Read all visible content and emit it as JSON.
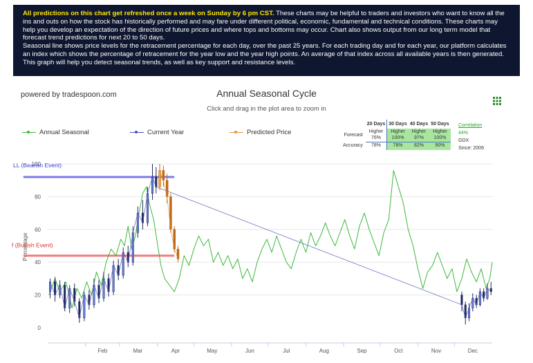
{
  "info": {
    "highlight": "All predictions on this chart get refreshed once a week on Sunday by 6 pm CST.",
    "text1": " These charts may be helpful to traders and investors who want to know all the ins and outs on how the stock has historically performed and may fare under different political, economic, fundamental and technical conditions. These charts may help you develop an expectation of the direction of future prices and where tops and bottoms may occur. Chart also shows output from our long term model that forecast trend predictions for next 20 to 50 days.",
    "text2": "Seasonal line shows price levels for the retracement percentage for each day, over the past 25 years. For each trading day and for each year, our platform calculates an index which shows the percentage of retracement for the year low and the year high points. An average of that index across all available years is then generated. This graph will help you detect seasonal trends, as well as key support and resistance levels."
  },
  "powered_by": "powered by tradespoon.com",
  "forecast": {
    "headers": [
      "20 Days",
      "30 Days",
      "40 Days",
      "50 Days"
    ],
    "forecast_label": "Forecast",
    "forecast_values": [
      [
        "Higher",
        "76%"
      ],
      [
        "Higher",
        "100%"
      ],
      [
        "Higher",
        "97%"
      ],
      [
        "Higher",
        "100%"
      ]
    ],
    "accuracy_label": "Accuracy",
    "accuracy_values": [
      "78%",
      "78%",
      "82%",
      "90%"
    ],
    "correlation_label": "Correlation",
    "correlation_value": "44%",
    "ticker": "GDX",
    "since": "Since: 2006"
  },
  "colors": {
    "seasonal": "#3cb83c",
    "current": "#4c52b8",
    "predicted": "#e8913a",
    "bearish_line": "#7b7be8",
    "bullish_line": "#f07a7a",
    "up_candle": "#6c7fe0",
    "down_candle": "#1f2a5c",
    "pred_up": "#f0a030",
    "pred_down": "#c06818"
  },
  "chart_data": {
    "type": "line",
    "title": "Annual Seasonal Cycle",
    "subtitle": "Click and drag in the plot area to zoom in",
    "ylabel": "Percentage",
    "ylim": [
      0,
      100
    ],
    "y_ticks": [
      "0",
      "20",
      "40",
      "60",
      "80",
      "100"
    ],
    "x_ticks": [
      "Feb",
      "Mar",
      "Apr",
      "May",
      "Jun",
      "Jul",
      "Aug",
      "Sep",
      "Oct",
      "Nov",
      "Dec"
    ],
    "grid": true,
    "legend": "top-left",
    "series_names": [
      "Annual Seasonal",
      "Current Year",
      "Predicted Price"
    ],
    "annual_seasonal": [
      [
        1,
        20
      ],
      [
        6,
        30
      ],
      [
        10,
        22
      ],
      [
        15,
        28
      ],
      [
        20,
        12
      ],
      [
        24,
        24
      ],
      [
        28,
        18
      ],
      [
        32,
        28
      ],
      [
        36,
        20
      ],
      [
        40,
        34
      ],
      [
        44,
        26
      ],
      [
        48,
        40
      ],
      [
        52,
        48
      ],
      [
        56,
        44
      ],
      [
        60,
        54
      ],
      [
        63,
        50
      ],
      [
        66,
        62
      ],
      [
        69,
        48
      ],
      [
        72,
        56
      ],
      [
        75,
        70
      ],
      [
        78,
        82
      ],
      [
        81,
        86
      ],
      [
        84,
        74
      ],
      [
        87,
        66
      ],
      [
        90,
        52
      ],
      [
        93,
        38
      ],
      [
        96,
        30
      ],
      [
        100,
        26
      ],
      [
        104,
        22
      ],
      [
        108,
        30
      ],
      [
        112,
        44
      ],
      [
        116,
        38
      ],
      [
        120,
        48
      ],
      [
        124,
        56
      ],
      [
        128,
        50
      ],
      [
        132,
        54
      ],
      [
        136,
        40
      ],
      [
        140,
        46
      ],
      [
        144,
        38
      ],
      [
        148,
        44
      ],
      [
        152,
        36
      ],
      [
        156,
        42
      ],
      [
        160,
        30
      ],
      [
        164,
        36
      ],
      [
        168,
        28
      ],
      [
        172,
        40
      ],
      [
        176,
        48
      ],
      [
        180,
        54
      ],
      [
        184,
        46
      ],
      [
        188,
        56
      ],
      [
        192,
        48
      ],
      [
        196,
        40
      ],
      [
        200,
        36
      ],
      [
        204,
        46
      ],
      [
        208,
        54
      ],
      [
        212,
        46
      ],
      [
        216,
        58
      ],
      [
        220,
        50
      ],
      [
        224,
        56
      ],
      [
        228,
        64
      ],
      [
        232,
        56
      ],
      [
        236,
        50
      ],
      [
        240,
        58
      ],
      [
        244,
        66
      ],
      [
        248,
        56
      ],
      [
        252,
        48
      ],
      [
        256,
        62
      ],
      [
        260,
        70
      ],
      [
        264,
        60
      ],
      [
        268,
        52
      ],
      [
        272,
        44
      ],
      [
        276,
        58
      ],
      [
        280,
        66
      ],
      [
        284,
        96
      ],
      [
        288,
        86
      ],
      [
        292,
        76
      ],
      [
        296,
        60
      ],
      [
        300,
        50
      ],
      [
        304,
        36
      ],
      [
        308,
        24
      ],
      [
        312,
        34
      ],
      [
        316,
        38
      ],
      [
        320,
        46
      ],
      [
        324,
        38
      ],
      [
        328,
        30
      ],
      [
        332,
        36
      ],
      [
        336,
        22
      ],
      [
        340,
        30
      ],
      [
        344,
        42
      ],
      [
        348,
        34
      ],
      [
        352,
        28
      ],
      [
        356,
        36
      ],
      [
        360,
        24
      ],
      [
        363,
        30
      ],
      [
        365,
        40
      ]
    ],
    "current_year_candles": [
      [
        2,
        22,
        28,
        18,
        30
      ],
      [
        6,
        28,
        20,
        16,
        31
      ],
      [
        10,
        20,
        26,
        18,
        29
      ],
      [
        14,
        26,
        12,
        10,
        28
      ],
      [
        18,
        12,
        24,
        9,
        26
      ],
      [
        22,
        24,
        16,
        13,
        27
      ],
      [
        26,
        16,
        6,
        3,
        18
      ],
      [
        30,
        6,
        20,
        4,
        22
      ],
      [
        34,
        20,
        14,
        11,
        23
      ],
      [
        38,
        14,
        26,
        12,
        30
      ],
      [
        42,
        26,
        18,
        15,
        29
      ],
      [
        46,
        18,
        30,
        16,
        34
      ],
      [
        50,
        30,
        22,
        19,
        33
      ],
      [
        54,
        22,
        38,
        20,
        41
      ],
      [
        58,
        38,
        32,
        29,
        42
      ],
      [
        62,
        32,
        46,
        30,
        49
      ],
      [
        66,
        46,
        40,
        37,
        50
      ],
      [
        70,
        40,
        58,
        38,
        62
      ],
      [
        74,
        58,
        70,
        55,
        74
      ],
      [
        78,
        70,
        64,
        60,
        78
      ],
      [
        82,
        64,
        82,
        62,
        86
      ],
      [
        86,
        82,
        92,
        78,
        100
      ],
      [
        89,
        92,
        86,
        82,
        98
      ],
      [
        -8,
        22,
        18,
        15,
        24
      ],
      [
        340,
        20,
        14,
        10,
        22
      ],
      [
        343,
        14,
        6,
        2,
        16
      ],
      [
        346,
        6,
        12,
        4,
        15
      ],
      [
        349,
        12,
        18,
        10,
        21
      ],
      [
        352,
        18,
        14,
        12,
        20
      ],
      [
        355,
        14,
        22,
        13,
        24
      ],
      [
        358,
        22,
        18,
        16,
        24
      ],
      [
        361,
        18,
        24,
        17,
        27
      ],
      [
        364,
        24,
        22,
        20,
        28
      ]
    ],
    "predicted_candles": [
      [
        92,
        86,
        96,
        84,
        100
      ],
      [
        95,
        96,
        90,
        86,
        99
      ],
      [
        98,
        90,
        80,
        76,
        94
      ],
      [
        101,
        80,
        60,
        58,
        82
      ],
      [
        104,
        60,
        48,
        46,
        62
      ],
      [
        107,
        48,
        42,
        40,
        50
      ]
    ],
    "bearish_level": {
      "label": "LL (Bearish Event)",
      "value": 92,
      "x_start": -20,
      "x_end": 104
    },
    "bullish_level": {
      "label": "f (Bullish Event)",
      "value": 44,
      "x_start": -20,
      "x_end": 104
    }
  }
}
